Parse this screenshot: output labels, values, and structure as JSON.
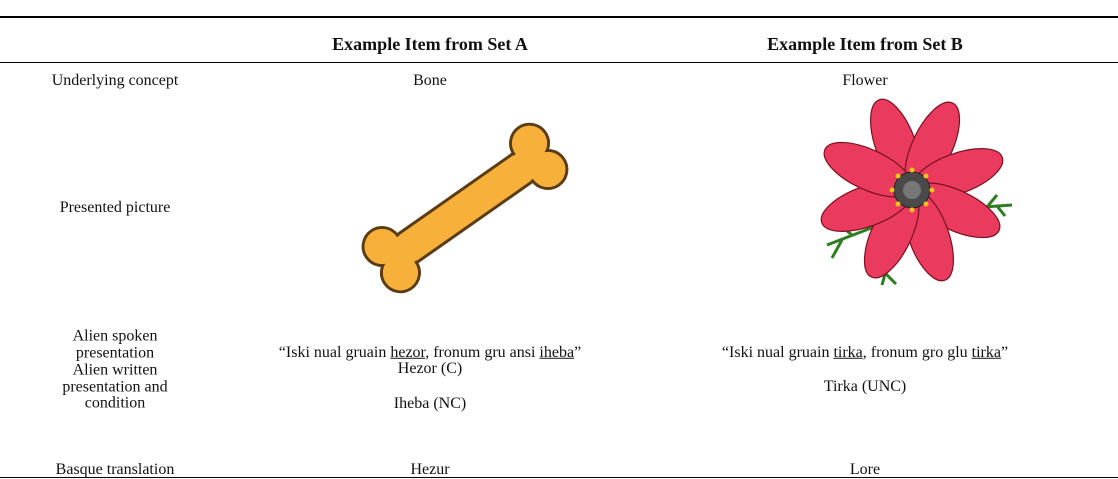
{
  "table": {
    "columns": [
      "Example Item from Set A",
      "Example Item from Set B"
    ],
    "rows": [
      {
        "label": "Underlying concept",
        "cells": [
          "Bone",
          "Flower"
        ]
      },
      {
        "label": "Presented picture"
      },
      {
        "label": "Alien spoken presentation",
        "cells": [
          [
            {
              "text": "“Iski nual gruain ",
              "underline": false
            },
            {
              "text": "hezor",
              "underline": true
            },
            {
              "text": ", fronum gru ansi ",
              "underline": false
            },
            {
              "text": "iheba",
              "underline": true
            },
            {
              "text": "”",
              "underline": false
            }
          ],
          [
            {
              "text": "“Iski nual gruain ",
              "underline": false
            },
            {
              "text": "tirka",
              "underline": true
            },
            {
              "text": ", fronum gro glu ",
              "underline": false
            },
            {
              "text": "tirka",
              "underline": true
            },
            {
              "text": "”",
              "underline": false
            }
          ]
        ]
      },
      {
        "label": "Alien written presentation and condition",
        "cells": [
          [
            "Hezor (C)",
            "Iheba (NC)"
          ],
          [
            "Tirka (UNC)"
          ]
        ]
      },
      {
        "label": "Basque translation",
        "cells": [
          "Hezur",
          "Lore"
        ]
      }
    ]
  }
}
